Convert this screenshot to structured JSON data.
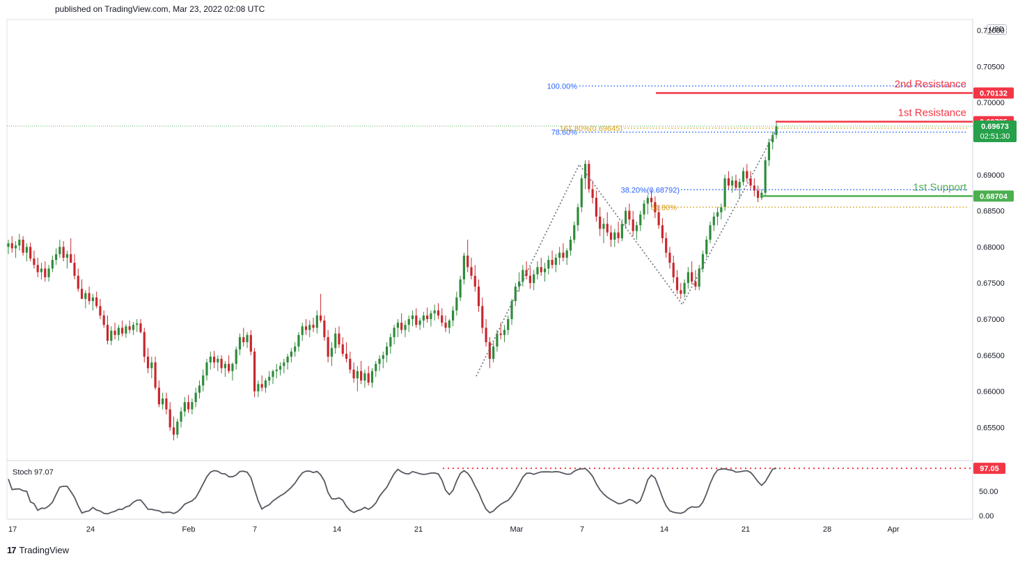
{
  "header": {
    "published": "published on TradingView.com, Mar 23, 2022 02:08 UTC"
  },
  "footer": {
    "brand": "TradingView"
  },
  "currency": "USD",
  "chart_data": {
    "type": "candlestick",
    "y_ticks": [
      "0.71000",
      "0.70500",
      "0.70000",
      "0.69000",
      "0.68500",
      "0.68000",
      "0.67500",
      "0.67000",
      "0.66500",
      "0.66000",
      "0.65500"
    ],
    "y_tick_values": [
      0.71,
      0.705,
      0.7,
      0.69,
      0.685,
      0.68,
      0.675,
      0.67,
      0.665,
      0.66,
      0.655
    ],
    "x_ticks": [
      "17",
      "24",
      "Feb",
      "7",
      "14",
      "21",
      "Mar",
      "7",
      "14",
      "21",
      "28",
      "Apr"
    ],
    "ylim": [
      0.6505,
      0.7115
    ],
    "price_levels": [
      {
        "name": "2nd Resistance",
        "label": "2nd Resistance",
        "value": 0.70132,
        "value_text": "0.70132",
        "color": "#f23645"
      },
      {
        "name": "1st Resistance",
        "label": "1st Resistance",
        "value": 0.69735,
        "value_text": "0.69735",
        "color": "#f23645"
      },
      {
        "name": "1st Support",
        "label": "1st Support",
        "value": 0.68704,
        "value_text": "0.68704",
        "color": "#4caf50"
      }
    ],
    "fib_levels": [
      {
        "label": "100.00%",
        "value": 0.7023,
        "color": "#2962ff"
      },
      {
        "label": "161.80%(0.69645)",
        "value": 0.69645,
        "color": "#d4a017"
      },
      {
        "label": "78.60%",
        "value": 0.6959,
        "color": "#2962ff"
      },
      {
        "label": "38.20%(0.68792)",
        "value": 0.68792,
        "color": "#2962ff"
      },
      {
        "label": "61.80%",
        "value": 0.6855,
        "color": "#d4a017"
      }
    ],
    "last_price": {
      "value": 0.69673,
      "value_text": "0.69673",
      "countdown": "02:51:30",
      "color": "#4caf50"
    },
    "candles": [
      [
        0.68,
        0.681,
        0.679,
        0.6805
      ],
      [
        0.6805,
        0.6815,
        0.6792,
        0.6798
      ],
      [
        0.6798,
        0.6808,
        0.6785,
        0.6802
      ],
      [
        0.6802,
        0.6818,
        0.6795,
        0.681
      ],
      [
        0.681,
        0.6815,
        0.6788,
        0.6792
      ],
      [
        0.6792,
        0.6805,
        0.678,
        0.68
      ],
      [
        0.68,
        0.6806,
        0.678,
        0.6784
      ],
      [
        0.6784,
        0.6795,
        0.677,
        0.6775
      ],
      [
        0.6775,
        0.6785,
        0.6758,
        0.6765
      ],
      [
        0.6765,
        0.6778,
        0.6755,
        0.677
      ],
      [
        0.677,
        0.678,
        0.6752,
        0.6758
      ],
      [
        0.6758,
        0.6775,
        0.6752,
        0.677
      ],
      [
        0.677,
        0.6788,
        0.6765,
        0.6782
      ],
      [
        0.6782,
        0.6798,
        0.6775,
        0.679
      ],
      [
        0.679,
        0.681,
        0.6785,
        0.68
      ],
      [
        0.68,
        0.6808,
        0.678,
        0.6785
      ],
      [
        0.6785,
        0.6795,
        0.677,
        0.679
      ],
      [
        0.679,
        0.6812,
        0.678,
        0.6778
      ],
      [
        0.6778,
        0.679,
        0.6755,
        0.676
      ],
      [
        0.676,
        0.677,
        0.6738,
        0.6742
      ],
      [
        0.6742,
        0.6755,
        0.673,
        0.6728
      ],
      [
        0.6728,
        0.674,
        0.6715,
        0.6736
      ],
      [
        0.6736,
        0.6745,
        0.672,
        0.6725
      ],
      [
        0.6725,
        0.6735,
        0.6712,
        0.673
      ],
      [
        0.673,
        0.6738,
        0.6715,
        0.6718
      ],
      [
        0.6718,
        0.6728,
        0.67,
        0.6705
      ],
      [
        0.6705,
        0.6712,
        0.6688,
        0.6692
      ],
      [
        0.6692,
        0.6705,
        0.6665,
        0.667
      ],
      [
        0.667,
        0.669,
        0.6664,
        0.6684
      ],
      [
        0.6684,
        0.6695,
        0.6672,
        0.6678
      ],
      [
        0.6678,
        0.6692,
        0.667,
        0.6688
      ],
      [
        0.6688,
        0.6698,
        0.6676,
        0.668
      ],
      [
        0.668,
        0.6693,
        0.6674,
        0.669
      ],
      [
        0.669,
        0.6698,
        0.668,
        0.6685
      ],
      [
        0.6685,
        0.6696,
        0.6678,
        0.6692
      ],
      [
        0.6692,
        0.67,
        0.6682,
        0.6694
      ],
      [
        0.6694,
        0.67,
        0.668,
        0.6682
      ],
      [
        0.6682,
        0.6688,
        0.664,
        0.6648
      ],
      [
        0.6648,
        0.666,
        0.6625,
        0.6632
      ],
      [
        0.6632,
        0.6648,
        0.6618,
        0.664
      ],
      [
        0.664,
        0.6648,
        0.6602,
        0.6605
      ],
      [
        0.6605,
        0.6615,
        0.6578,
        0.6582
      ],
      [
        0.6582,
        0.6598,
        0.6575,
        0.659
      ],
      [
        0.659,
        0.6598,
        0.6568,
        0.6575
      ],
      [
        0.6575,
        0.6585,
        0.6545,
        0.655
      ],
      [
        0.655,
        0.6565,
        0.6532,
        0.654
      ],
      [
        0.654,
        0.6562,
        0.6535,
        0.6558
      ],
      [
        0.6558,
        0.6578,
        0.655,
        0.6572
      ],
      [
        0.6572,
        0.6592,
        0.6565,
        0.6585
      ],
      [
        0.6585,
        0.6595,
        0.657,
        0.6575
      ],
      [
        0.6575,
        0.659,
        0.6568,
        0.6585
      ],
      [
        0.6585,
        0.6605,
        0.6578,
        0.6598
      ],
      [
        0.6598,
        0.6615,
        0.659,
        0.6608
      ],
      [
        0.6608,
        0.663,
        0.66,
        0.6622
      ],
      [
        0.6622,
        0.6645,
        0.6615,
        0.664
      ],
      [
        0.664,
        0.6655,
        0.663,
        0.6648
      ],
      [
        0.6648,
        0.6656,
        0.6632,
        0.664
      ],
      [
        0.664,
        0.665,
        0.6628,
        0.6645
      ],
      [
        0.6645,
        0.665,
        0.6625,
        0.6632
      ],
      [
        0.6632,
        0.6642,
        0.662,
        0.6638
      ],
      [
        0.6638,
        0.665,
        0.6625,
        0.6628
      ],
      [
        0.6628,
        0.664,
        0.6615,
        0.6638
      ],
      [
        0.6638,
        0.6662,
        0.663,
        0.6658
      ],
      [
        0.6658,
        0.668,
        0.665,
        0.6675
      ],
      [
        0.6675,
        0.6688,
        0.6662,
        0.6668
      ],
      [
        0.6668,
        0.6682,
        0.666,
        0.6678
      ],
      [
        0.6678,
        0.6685,
        0.665,
        0.6655
      ],
      [
        0.6655,
        0.666,
        0.6592,
        0.66
      ],
      [
        0.66,
        0.6615,
        0.6592,
        0.661
      ],
      [
        0.661,
        0.6622,
        0.66,
        0.6605
      ],
      [
        0.6605,
        0.6618,
        0.6598,
        0.6615
      ],
      [
        0.6615,
        0.6628,
        0.6608,
        0.662
      ],
      [
        0.662,
        0.663,
        0.661,
        0.6628
      ],
      [
        0.6628,
        0.6638,
        0.6618,
        0.663
      ],
      [
        0.663,
        0.664,
        0.6622,
        0.6635
      ],
      [
        0.6635,
        0.6645,
        0.6625,
        0.664
      ],
      [
        0.664,
        0.6652,
        0.663,
        0.6648
      ],
      [
        0.6648,
        0.666,
        0.664,
        0.6655
      ],
      [
        0.6655,
        0.6668,
        0.6648,
        0.6662
      ],
      [
        0.6662,
        0.6682,
        0.6655,
        0.6678
      ],
      [
        0.6678,
        0.6695,
        0.667,
        0.669
      ],
      [
        0.669,
        0.67,
        0.6678,
        0.6685
      ],
      [
        0.6685,
        0.6698,
        0.6675,
        0.6692
      ],
      [
        0.6692,
        0.6702,
        0.6682,
        0.6688
      ],
      [
        0.6688,
        0.6712,
        0.668,
        0.6705
      ],
      [
        0.6705,
        0.6735,
        0.6695,
        0.6698
      ],
      [
        0.6698,
        0.6705,
        0.667,
        0.6675
      ],
      [
        0.6675,
        0.6685,
        0.664,
        0.6648
      ],
      [
        0.6648,
        0.6668,
        0.6635,
        0.666
      ],
      [
        0.666,
        0.6688,
        0.6652,
        0.668
      ],
      [
        0.668,
        0.669,
        0.666,
        0.6665
      ],
      [
        0.6665,
        0.6675,
        0.6648,
        0.6652
      ],
      [
        0.6652,
        0.6668,
        0.664,
        0.6645
      ],
      [
        0.6645,
        0.6655,
        0.6625,
        0.663
      ],
      [
        0.663,
        0.664,
        0.6612,
        0.6618
      ],
      [
        0.6618,
        0.6635,
        0.66,
        0.6628
      ],
      [
        0.6628,
        0.6642,
        0.661,
        0.6615
      ],
      [
        0.6615,
        0.663,
        0.6605,
        0.6625
      ],
      [
        0.6625,
        0.6635,
        0.6608,
        0.6612
      ],
      [
        0.6612,
        0.6632,
        0.6605,
        0.6628
      ],
      [
        0.6628,
        0.6642,
        0.662,
        0.6638
      ],
      [
        0.6638,
        0.665,
        0.6628,
        0.6645
      ],
      [
        0.6645,
        0.6655,
        0.6632,
        0.665
      ],
      [
        0.665,
        0.6668,
        0.664,
        0.6662
      ],
      [
        0.6662,
        0.668,
        0.6652,
        0.6675
      ],
      [
        0.6675,
        0.6692,
        0.6665,
        0.6688
      ],
      [
        0.6688,
        0.67,
        0.6675,
        0.6695
      ],
      [
        0.6695,
        0.6708,
        0.668,
        0.6685
      ],
      [
        0.6685,
        0.6698,
        0.6675,
        0.6692
      ],
      [
        0.6692,
        0.6705,
        0.6682,
        0.67
      ],
      [
        0.67,
        0.6712,
        0.669,
        0.6705
      ],
      [
        0.6705,
        0.6715,
        0.6688,
        0.6692
      ],
      [
        0.6692,
        0.6702,
        0.6685,
        0.6698
      ],
      [
        0.6698,
        0.671,
        0.6688,
        0.6705
      ],
      [
        0.6705,
        0.6716,
        0.6695,
        0.67
      ],
      [
        0.67,
        0.6712,
        0.669,
        0.6708
      ],
      [
        0.6708,
        0.672,
        0.6698,
        0.6712
      ],
      [
        0.6712,
        0.6722,
        0.67,
        0.6705
      ],
      [
        0.6705,
        0.6715,
        0.669,
        0.6695
      ],
      [
        0.6695,
        0.6705,
        0.6682,
        0.6688
      ],
      [
        0.6688,
        0.67,
        0.668,
        0.6698
      ],
      [
        0.6698,
        0.6718,
        0.669,
        0.6712
      ],
      [
        0.6712,
        0.6738,
        0.6705,
        0.673
      ],
      [
        0.673,
        0.676,
        0.6725,
        0.6755
      ],
      [
        0.6755,
        0.6792,
        0.6748,
        0.6788
      ],
      [
        0.6788,
        0.681,
        0.6765,
        0.6772
      ],
      [
        0.6772,
        0.6785,
        0.6755,
        0.676
      ],
      [
        0.676,
        0.6775,
        0.6738,
        0.6745
      ],
      [
        0.6745,
        0.6755,
        0.671,
        0.6718
      ],
      [
        0.6718,
        0.673,
        0.668,
        0.6688
      ],
      [
        0.6688,
        0.67,
        0.6662,
        0.6668
      ],
      [
        0.6668,
        0.6675,
        0.6632,
        0.6645
      ],
      [
        0.6645,
        0.6668,
        0.664,
        0.6662
      ],
      [
        0.6662,
        0.6685,
        0.6655,
        0.668
      ],
      [
        0.668,
        0.6695,
        0.6672,
        0.6678
      ],
      [
        0.6678,
        0.6692,
        0.6668,
        0.6685
      ],
      [
        0.6685,
        0.6705,
        0.6678,
        0.67
      ],
      [
        0.67,
        0.6728,
        0.6692,
        0.6725
      ],
      [
        0.6725,
        0.675,
        0.6718,
        0.6745
      ],
      [
        0.6745,
        0.6765,
        0.6738,
        0.6752
      ],
      [
        0.6752,
        0.6775,
        0.6745,
        0.6768
      ],
      [
        0.6768,
        0.678,
        0.6755,
        0.676
      ],
      [
        0.676,
        0.6772,
        0.6742,
        0.675
      ],
      [
        0.675,
        0.6768,
        0.674,
        0.6762
      ],
      [
        0.6762,
        0.678,
        0.6755,
        0.6772
      ],
      [
        0.6772,
        0.6785,
        0.676,
        0.6765
      ],
      [
        0.6765,
        0.6778,
        0.6752,
        0.677
      ],
      [
        0.677,
        0.6788,
        0.6762,
        0.6782
      ],
      [
        0.6782,
        0.6795,
        0.677,
        0.6775
      ],
      [
        0.6775,
        0.679,
        0.6765,
        0.6785
      ],
      [
        0.6785,
        0.68,
        0.6775,
        0.6792
      ],
      [
        0.6792,
        0.6805,
        0.678,
        0.6785
      ],
      [
        0.6785,
        0.6798,
        0.6775,
        0.6795
      ],
      [
        0.6795,
        0.6815,
        0.6788,
        0.681
      ],
      [
        0.681,
        0.6835,
        0.6805,
        0.683
      ],
      [
        0.683,
        0.686,
        0.6822,
        0.6855
      ],
      [
        0.6855,
        0.69,
        0.6848,
        0.6895
      ],
      [
        0.6895,
        0.692,
        0.688,
        0.6915
      ],
      [
        0.6915,
        0.692,
        0.6875,
        0.688
      ],
      [
        0.688,
        0.6892,
        0.686,
        0.6868
      ],
      [
        0.6868,
        0.6878,
        0.6835,
        0.6842
      ],
      [
        0.6842,
        0.6855,
        0.6815,
        0.6825
      ],
      [
        0.6825,
        0.684,
        0.6805,
        0.6832
      ],
      [
        0.6832,
        0.6848,
        0.6815,
        0.682
      ],
      [
        0.682,
        0.683,
        0.68,
        0.681
      ],
      [
        0.681,
        0.6825,
        0.68,
        0.682
      ],
      [
        0.682,
        0.6835,
        0.6805,
        0.6812
      ],
      [
        0.6812,
        0.6838,
        0.6808,
        0.6832
      ],
      [
        0.6832,
        0.6855,
        0.6825,
        0.685
      ],
      [
        0.685,
        0.686,
        0.683,
        0.6838
      ],
      [
        0.6838,
        0.685,
        0.6815,
        0.6822
      ],
      [
        0.6822,
        0.6835,
        0.681,
        0.683
      ],
      [
        0.683,
        0.685,
        0.6822,
        0.6845
      ],
      [
        0.6845,
        0.6865,
        0.6838,
        0.686
      ],
      [
        0.686,
        0.6872,
        0.6845,
        0.6868
      ],
      [
        0.6868,
        0.688,
        0.6855,
        0.6862
      ],
      [
        0.6862,
        0.687,
        0.684,
        0.6848
      ],
      [
        0.6848,
        0.6858,
        0.6825,
        0.683
      ],
      [
        0.683,
        0.684,
        0.6805,
        0.6812
      ],
      [
        0.6812,
        0.682,
        0.6785,
        0.6792
      ],
      [
        0.6792,
        0.68,
        0.677,
        0.6778
      ],
      [
        0.6778,
        0.6788,
        0.675,
        0.6758
      ],
      [
        0.6758,
        0.6768,
        0.6735,
        0.674
      ],
      [
        0.674,
        0.675,
        0.6728,
        0.6735
      ],
      [
        0.6735,
        0.6755,
        0.673,
        0.675
      ],
      [
        0.675,
        0.6772,
        0.6742,
        0.6765
      ],
      [
        0.6765,
        0.678,
        0.6748,
        0.6752
      ],
      [
        0.6752,
        0.6768,
        0.674,
        0.6745
      ],
      [
        0.6745,
        0.6775,
        0.674,
        0.677
      ],
      [
        0.677,
        0.6795,
        0.6765,
        0.679
      ],
      [
        0.679,
        0.6815,
        0.6785,
        0.681
      ],
      [
        0.681,
        0.6835,
        0.6805,
        0.683
      ],
      [
        0.683,
        0.6848,
        0.6822,
        0.6842
      ],
      [
        0.6842,
        0.6855,
        0.683,
        0.6848
      ],
      [
        0.6848,
        0.686,
        0.6838,
        0.6855
      ],
      [
        0.6855,
        0.69,
        0.685,
        0.6895
      ],
      [
        0.6895,
        0.6905,
        0.688,
        0.6885
      ],
      [
        0.6885,
        0.6898,
        0.6875,
        0.6892
      ],
      [
        0.6892,
        0.69,
        0.6878,
        0.6882
      ],
      [
        0.6882,
        0.6895,
        0.6868,
        0.689
      ],
      [
        0.689,
        0.691,
        0.6885,
        0.6905
      ],
      [
        0.6905,
        0.6915,
        0.689,
        0.6895
      ],
      [
        0.6895,
        0.6905,
        0.6878,
        0.6885
      ],
      [
        0.6885,
        0.6895,
        0.687,
        0.6878
      ],
      [
        0.6878,
        0.6885,
        0.6862,
        0.6868
      ],
      [
        0.6868,
        0.688,
        0.6865,
        0.6875
      ],
      [
        0.6875,
        0.6925,
        0.687,
        0.692
      ],
      [
        0.692,
        0.695,
        0.6912,
        0.6945
      ],
      [
        0.6945,
        0.696,
        0.6935,
        0.6955
      ],
      [
        0.6955,
        0.6972,
        0.695,
        0.6967
      ]
    ],
    "stoch": {
      "label": "Stoch",
      "value_text": "97.07",
      "level": 97.05,
      "level_text": "97.05",
      "ticks": [
        "50.00",
        "0.00"
      ]
    }
  }
}
